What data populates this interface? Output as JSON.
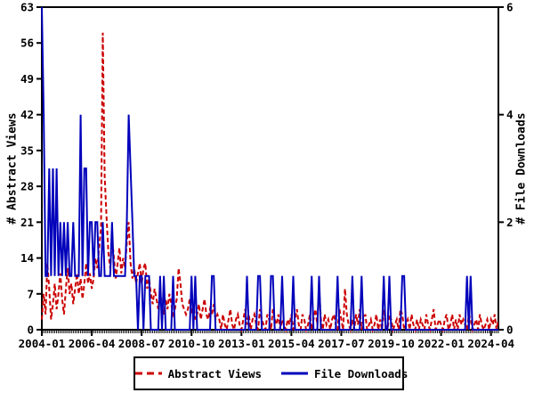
{
  "chart_data": {
    "type": "line",
    "title": "",
    "x_axis": {
      "start": "2004-01",
      "months_total": 248,
      "tick_labels": [
        "2004-01",
        "2006-04",
        "2008-07",
        "2010-10",
        "2013-01",
        "2015-04",
        "2017-07",
        "2019-10",
        "2022-01",
        "2024-04"
      ],
      "tick_month_indices": [
        0,
        27,
        54,
        81,
        108,
        135,
        162,
        189,
        216,
        243
      ]
    },
    "y_left": {
      "label": "# Abstract Views",
      "ticks": [
        0,
        7,
        14,
        21,
        28,
        35,
        42,
        49,
        56,
        63
      ],
      "range": [
        0,
        63
      ]
    },
    "y_right": {
      "label": "# File Downloads",
      "ticks": [
        0,
        2,
        4,
        6
      ],
      "range": [
        0,
        6
      ]
    },
    "grid": "off",
    "legend_position": "bottom-center",
    "series": [
      {
        "name": "Abstract Views",
        "axis": "left",
        "style": "dashed",
        "color": "#cc0000",
        "values": [
          2,
          7,
          3,
          13,
          8,
          2,
          5,
          9,
          4,
          7,
          11,
          6,
          3,
          8,
          12,
          7,
          9,
          5,
          8,
          11,
          7,
          10,
          6,
          9,
          13,
          9,
          11,
          8,
          10,
          14,
          12,
          16,
          20,
          58,
          30,
          22,
          15,
          12,
          18,
          14,
          10,
          13,
          16,
          11,
          14,
          12,
          17,
          21,
          13,
          10,
          12,
          9,
          11,
          13,
          9,
          12,
          13,
          8,
          10,
          7,
          5,
          8,
          6,
          4,
          7,
          5,
          3,
          6,
          4,
          7,
          5,
          3,
          4,
          6,
          12,
          9,
          5,
          4,
          3,
          4,
          6,
          3,
          5,
          2,
          3,
          5,
          2,
          4,
          6,
          3,
          2,
          4,
          3,
          5,
          2,
          3,
          2,
          0,
          3,
          1,
          0,
          2,
          4,
          1,
          0,
          2,
          3,
          1,
          0,
          2,
          4,
          1,
          3,
          0,
          2,
          3,
          1,
          0,
          4,
          2,
          1,
          0,
          3,
          2,
          0,
          4,
          2,
          1,
          3,
          0,
          2,
          1,
          0,
          2,
          1,
          3,
          0,
          2,
          4,
          1,
          0,
          3,
          2,
          0,
          1,
          3,
          0,
          2,
          4,
          1,
          8,
          2,
          0,
          3,
          1,
          2,
          0,
          2,
          3,
          1,
          0,
          4,
          2,
          0,
          8,
          3,
          1,
          0,
          2,
          0,
          3,
          1,
          4,
          0,
          2,
          3,
          0,
          1,
          2,
          0,
          1,
          3,
          0,
          2,
          0,
          4,
          1,
          0,
          3,
          2,
          0,
          1,
          2,
          0,
          4,
          3,
          0,
          1,
          2,
          0,
          3,
          1,
          0,
          2,
          0,
          2,
          1,
          0,
          3,
          1,
          0,
          2,
          4,
          0,
          1,
          2,
          1,
          0,
          2,
          3,
          0,
          1,
          3,
          0,
          2,
          0,
          3,
          1,
          2,
          1,
          0,
          3,
          2,
          0,
          1,
          2,
          0,
          3,
          1,
          0,
          1,
          2,
          0,
          2,
          1,
          3,
          0,
          2
        ]
      },
      {
        "name": "File Downloads",
        "axis": "right",
        "style": "solid",
        "color": "#0000bb",
        "values": [
          6,
          4,
          1,
          1,
          3,
          1,
          3,
          1,
          3,
          1,
          2,
          1,
          2,
          1,
          2,
          1,
          1,
          2,
          1,
          1,
          1,
          4,
          1,
          3,
          3,
          1,
          2,
          2,
          1,
          2,
          2,
          1,
          1,
          2,
          1,
          1,
          1,
          1,
          2,
          1,
          1,
          1,
          1,
          1,
          1,
          1,
          2,
          4,
          3,
          2,
          1,
          1,
          0,
          1,
          1,
          0,
          1,
          1,
          1,
          0,
          0,
          0,
          0,
          0,
          1,
          0,
          1,
          0,
          0,
          0,
          0,
          1,
          0,
          0,
          0,
          0,
          0,
          0,
          0,
          0,
          0,
          1,
          0,
          1,
          0,
          0,
          0,
          0,
          0,
          0,
          0,
          0,
          1,
          1,
          0,
          0,
          0,
          0,
          0,
          0,
          0,
          0,
          0,
          0,
          0,
          0,
          0,
          0,
          0,
          0,
          0,
          1,
          0,
          0,
          0,
          0,
          0,
          1,
          1,
          0,
          0,
          0,
          0,
          0,
          1,
          1,
          0,
          0,
          0,
          0,
          1,
          0,
          0,
          0,
          0,
          0,
          1,
          0,
          0,
          0,
          0,
          0,
          0,
          0,
          0,
          0,
          1,
          0,
          0,
          0,
          1,
          0,
          0,
          0,
          0,
          0,
          0,
          0,
          0,
          0,
          1,
          0,
          0,
          0,
          0,
          0,
          0,
          0,
          1,
          0,
          0,
          0,
          0,
          1,
          0,
          0,
          0,
          0,
          0,
          0,
          0,
          0,
          0,
          0,
          0,
          1,
          0,
          0,
          1,
          0,
          0,
          0,
          0,
          0,
          0,
          1,
          1,
          0,
          0,
          0,
          0,
          0,
          0,
          0,
          0,
          0,
          0,
          0,
          0,
          0,
          0,
          0,
          0,
          0,
          0,
          0,
          0,
          0,
          0,
          0,
          0,
          0,
          0,
          0,
          0,
          0,
          0,
          0,
          0,
          0,
          1,
          0,
          1,
          0,
          0,
          0,
          0,
          0,
          0,
          0,
          0,
          0,
          0,
          0,
          0,
          0,
          0,
          0
        ]
      }
    ],
    "legend": {
      "entries": [
        "Abstract Views",
        "File Downloads"
      ]
    }
  }
}
